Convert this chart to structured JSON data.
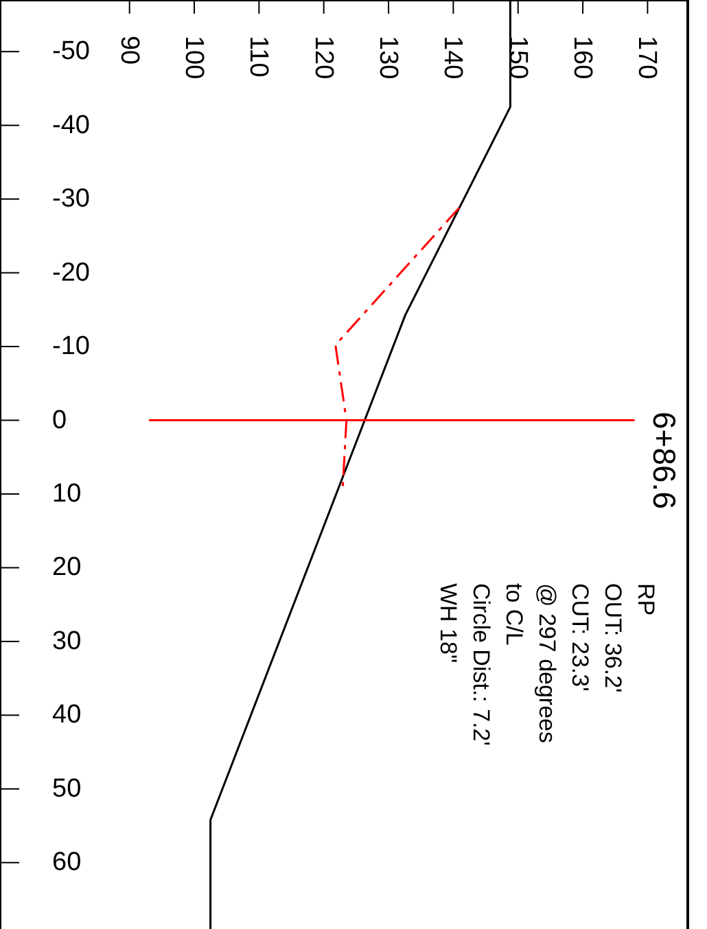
{
  "chart_data": {
    "type": "line",
    "xlim": [
      70,
      176
    ],
    "xticks": [
      90,
      100,
      110,
      120,
      130,
      140,
      150,
      160,
      170
    ],
    "ylim": [
      69,
      -57
    ],
    "yticks": [
      -50,
      -40,
      -30,
      -20,
      -10,
      0,
      10,
      20,
      30,
      40,
      50,
      60
    ],
    "series": [
      {
        "color": "#000000",
        "x": [
          148.8,
          148.8,
          132.6,
          102.5,
          102.5
        ],
        "values": [
          -57,
          -42.5,
          -14.3,
          54.2,
          69
        ]
      },
      {
        "color": "#ff0000",
        "line_style": "dashed",
        "x": [
          140.9,
          121.8,
          123.5,
          122.9
        ],
        "values": [
          -28.8,
          -10.2,
          0,
          9.6
        ]
      },
      {
        "color": "#ff0000",
        "x": [
          93,
          168
        ],
        "values": [
          0,
          0
        ]
      }
    ],
    "annotations": [
      "6+86.6",
      "RP",
      "OUT: 36.2'",
      "CUT:  23.3'",
      "@ 297 degrees",
      "to C/L",
      "Circle Dist.:  7.2'",
      "WH 18\""
    ]
  }
}
